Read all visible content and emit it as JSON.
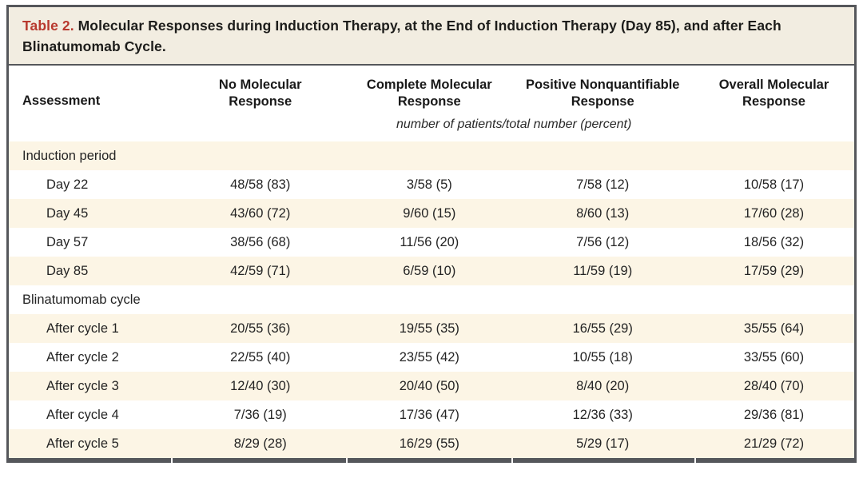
{
  "title": {
    "label": "Table 2.",
    "text": " Molecular Responses during Induction Therapy, at the End of Induction Therapy (Day 85), and after Each Blinatumomab Cycle."
  },
  "table": {
    "columns": [
      "Assessment",
      "No Molecular Response",
      "Complete Molecular Response",
      "Positive Nonquantifiable Response",
      "Overall Molecular Response"
    ],
    "units_note": "number of patients/total number (percent)",
    "rows": [
      {
        "type": "section",
        "label": "Induction period",
        "values": []
      },
      {
        "type": "data",
        "label": "Day 22",
        "values": [
          "48/58 (83)",
          "3/58 (5)",
          "7/58 (12)",
          "10/58 (17)"
        ]
      },
      {
        "type": "data",
        "label": "Day 45",
        "values": [
          "43/60 (72)",
          "9/60 (15)",
          "8/60 (13)",
          "17/60 (28)"
        ]
      },
      {
        "type": "data",
        "label": "Day 57",
        "values": [
          "38/56 (68)",
          "11/56 (20)",
          "7/56 (12)",
          "18/56 (32)"
        ]
      },
      {
        "type": "data",
        "label": "Day 85",
        "values": [
          "42/59 (71)",
          "6/59 (10)",
          "11/59 (19)",
          "17/59 (29)"
        ]
      },
      {
        "type": "section",
        "label": "Blinatumomab cycle",
        "values": []
      },
      {
        "type": "data",
        "label": "After cycle 1",
        "values": [
          "20/55 (36)",
          "19/55 (35)",
          "16/55 (29)",
          "35/55 (64)"
        ]
      },
      {
        "type": "data",
        "label": "After cycle 2",
        "values": [
          "22/55 (40)",
          "23/55 (42)",
          "10/55 (18)",
          "33/55 (60)"
        ]
      },
      {
        "type": "data",
        "label": "After cycle 3",
        "values": [
          "12/40 (30)",
          "20/40 (50)",
          "8/40 (20)",
          "28/40 (70)"
        ]
      },
      {
        "type": "data",
        "label": "After cycle 4",
        "values": [
          "7/36 (19)",
          "17/36 (47)",
          "12/36 (33)",
          "29/36 (81)"
        ]
      },
      {
        "type": "data",
        "label": "After cycle 5",
        "values": [
          "8/29 (28)",
          "16/29 (55)",
          "5/29 (17)",
          "21/29 (72)"
        ]
      }
    ]
  },
  "colors": {
    "title_band_bg": "#f2ede1",
    "stripe_bg": "#fcf5e5",
    "rule_dark": "#55575b",
    "title_accent_red": "#b8392e",
    "text": "#242424"
  }
}
